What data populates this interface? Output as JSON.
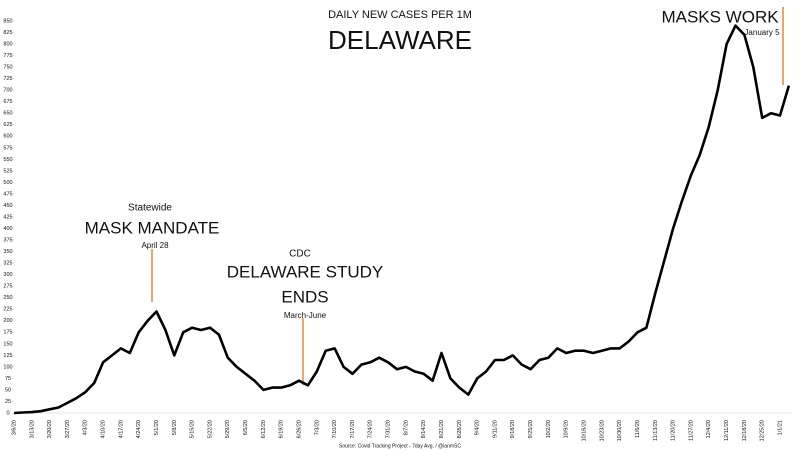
{
  "chart_data": {
    "type": "line",
    "title": "DELAWARE",
    "subtitle": "DAILY NEW CASES PER 1M",
    "source": "Source: Covid Tracking Project - 7day Avg. / @ianmSC",
    "annotations": [
      {
        "lines": [
          "Statewide",
          "MASK MANDATE",
          "April 28"
        ]
      },
      {
        "lines": [
          "CDC",
          "DELAWARE STUDY",
          "ENDS",
          "March-June"
        ]
      },
      {
        "lines": [
          "MASKS WORK",
          "January 5"
        ]
      }
    ],
    "categories": [
      "3/6/20",
      null,
      "3/13/20",
      null,
      "3/20/20",
      null,
      "3/27/20",
      null,
      "4/3/20",
      null,
      "4/10/20",
      null,
      "4/17/20",
      null,
      "4/24/20",
      null,
      "5/1/20",
      null,
      "5/8/20",
      null,
      "5/15/20",
      null,
      "5/22/20",
      null,
      "5/29/20",
      null,
      "6/5/20",
      null,
      "6/12/20",
      null,
      "6/19/20",
      null,
      "6/26/20",
      null,
      "7/3/20",
      null,
      "7/10/20",
      null,
      "7/17/20",
      null,
      "7/24/20",
      null,
      "7/31/20",
      null,
      "8/7/20",
      null,
      "8/14/20",
      null,
      "8/21/20",
      null,
      "8/28/20",
      null,
      "9/4/20",
      null,
      "9/11/20",
      null,
      "9/18/20",
      null,
      "9/25/20",
      null,
      "10/2/20",
      null,
      "10/9/20",
      null,
      "10/16/20",
      null,
      "10/23/20",
      null,
      "10/30/20",
      null,
      "11/6/20",
      null,
      "11/13/20",
      null,
      "11/20/20",
      null,
      "11/27/20",
      null,
      "12/4/20",
      null,
      "12/11/20",
      null,
      "12/18/20",
      null,
      "12/25/20",
      null,
      "1/1/21",
      null
    ],
    "series": [
      {
        "name": "7-day avg",
        "color": "#000000",
        "values": [
          0,
          1,
          2,
          4,
          8,
          12,
          22,
          32,
          45,
          65,
          110,
          125,
          140,
          130,
          175,
          200,
          220,
          180,
          125,
          175,
          185,
          180,
          185,
          170,
          120,
          100,
          85,
          70,
          50,
          55,
          55,
          60,
          70,
          60,
          90,
          135,
          140,
          100,
          85,
          105,
          110,
          120,
          110,
          95,
          100,
          90,
          85,
          70,
          130,
          75,
          55,
          40,
          75,
          90,
          115,
          115,
          125,
          105,
          95,
          115,
          120,
          140,
          130,
          135,
          135,
          130,
          135,
          140,
          140,
          155,
          175,
          185,
          260,
          330,
          400,
          460,
          515,
          560,
          620,
          700,
          800,
          840,
          820,
          750,
          640,
          650,
          645,
          710
        ]
      }
    ],
    "ylim": [
      0,
      850
    ],
    "yticks": [
      0,
      25,
      50,
      75,
      100,
      125,
      150,
      175,
      200,
      225,
      250,
      275,
      300,
      325,
      350,
      375,
      400,
      425,
      450,
      475,
      500,
      525,
      550,
      575,
      600,
      625,
      650,
      675,
      700,
      725,
      750,
      775,
      800,
      825,
      850
    ]
  }
}
